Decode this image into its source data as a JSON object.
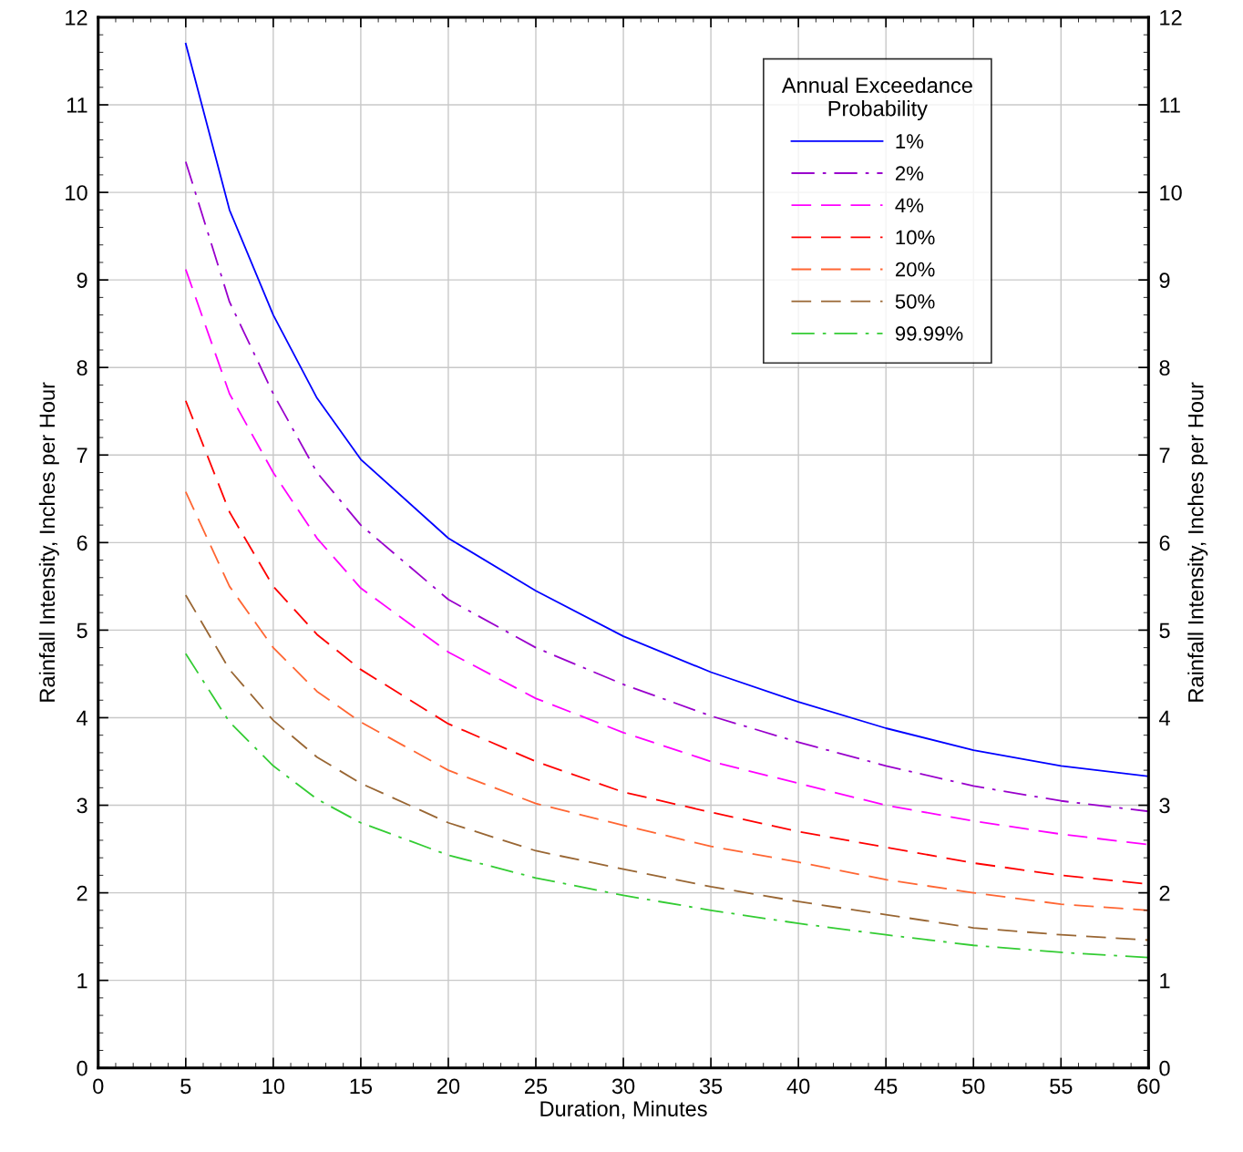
{
  "chart_data": {
    "type": "line",
    "xlabel": "Duration, Minutes",
    "ylabel": "Rainfall Intensity, Inches per Hour",
    "y2label": "Rainfall Intensity, Inches per Hour",
    "legend_title": "Annual Exceedance\nProbability",
    "legend": "top right",
    "grid": true,
    "marker": "none",
    "x": [
      5,
      7.5,
      10,
      12.5,
      15,
      20,
      25,
      30,
      35,
      40,
      45,
      50,
      55,
      60
    ],
    "xlim": [
      0,
      60
    ],
    "xticks": [
      0,
      5,
      10,
      15,
      20,
      25,
      30,
      35,
      40,
      45,
      50,
      55,
      60
    ],
    "ylim": [
      0,
      12
    ],
    "yticks": [
      0,
      1,
      2,
      3,
      4,
      5,
      6,
      7,
      8,
      9,
      10,
      11,
      12
    ],
    "y2lim": [
      0,
      12
    ],
    "y2ticks": [
      0,
      1,
      2,
      3,
      4,
      5,
      6,
      7,
      8,
      9,
      10,
      11,
      12
    ],
    "series": [
      {
        "name": "1%",
        "color": "#0000ff",
        "line_style": "solid",
        "values": [
          11.7,
          9.8,
          8.6,
          7.65,
          6.95,
          6.05,
          5.45,
          4.93,
          4.52,
          4.18,
          3.88,
          3.63,
          3.45,
          3.33
        ]
      },
      {
        "name": "2%",
        "color": "#9900cc",
        "line_style": "dashdot",
        "values": [
          10.35,
          8.75,
          7.7,
          6.8,
          6.2,
          5.35,
          4.8,
          4.38,
          4.02,
          3.72,
          3.45,
          3.22,
          3.05,
          2.93
        ]
      },
      {
        "name": "4%",
        "color": "#ff00ff",
        "line_style": "dashed",
        "values": [
          9.12,
          7.7,
          6.8,
          6.05,
          5.48,
          4.75,
          4.22,
          3.83,
          3.5,
          3.25,
          3.0,
          2.82,
          2.67,
          2.55
        ]
      },
      {
        "name": "10%",
        "color": "#ff0000",
        "line_style": "dashed",
        "values": [
          7.62,
          6.35,
          5.5,
          4.95,
          4.55,
          3.93,
          3.5,
          3.15,
          2.92,
          2.7,
          2.52,
          2.34,
          2.2,
          2.1
        ]
      },
      {
        "name": "20%",
        "color": "#ff6633",
        "line_style": "dashed",
        "values": [
          6.58,
          5.5,
          4.8,
          4.3,
          3.95,
          3.4,
          3.02,
          2.77,
          2.53,
          2.35,
          2.15,
          2.0,
          1.87,
          1.8
        ]
      },
      {
        "name": "50%",
        "color": "#996633",
        "line_style": "dashed",
        "values": [
          5.4,
          4.55,
          3.97,
          3.55,
          3.25,
          2.8,
          2.48,
          2.27,
          2.07,
          1.9,
          1.75,
          1.6,
          1.52,
          1.46
        ]
      },
      {
        "name": "99.99%",
        "color": "#33cc33",
        "line_style": "dashdot",
        "values": [
          4.73,
          3.95,
          3.45,
          3.07,
          2.8,
          2.43,
          2.17,
          1.97,
          1.8,
          1.65,
          1.52,
          1.4,
          1.32,
          1.26
        ]
      }
    ]
  }
}
